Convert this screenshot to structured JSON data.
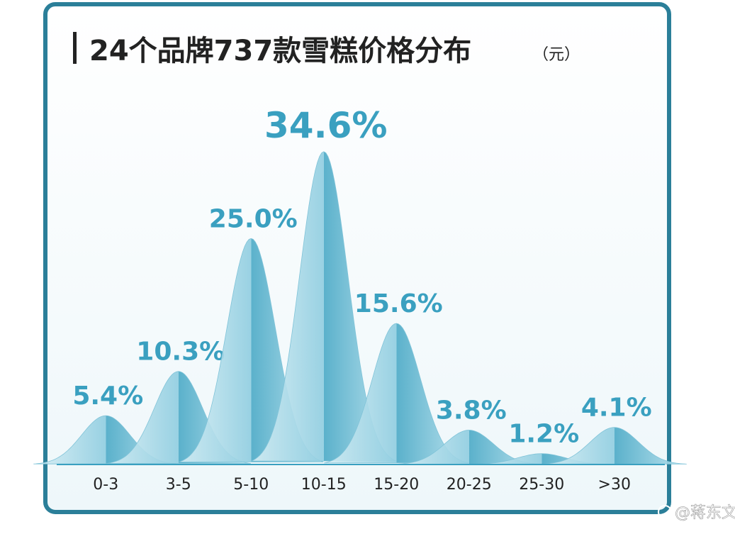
{
  "chart_data": {
    "type": "bell",
    "title": "24个品牌737款雪糕价格分布",
    "unit": "（元）",
    "categories": [
      "0-3",
      "3-5",
      "5-10",
      "10-15",
      "15-20",
      "20-25",
      "25-30",
      ">30"
    ],
    "values": [
      5.4,
      10.3,
      25.0,
      34.6,
      15.6,
      3.8,
      1.2,
      4.1
    ],
    "value_labels": [
      "5.4%",
      "10.3%",
      "25.0%",
      "34.6%",
      "15.6%",
      "3.8%",
      "1.2%",
      "4.1%"
    ],
    "color": "#3aa0c0"
  },
  "watermark": "@蒋东文"
}
